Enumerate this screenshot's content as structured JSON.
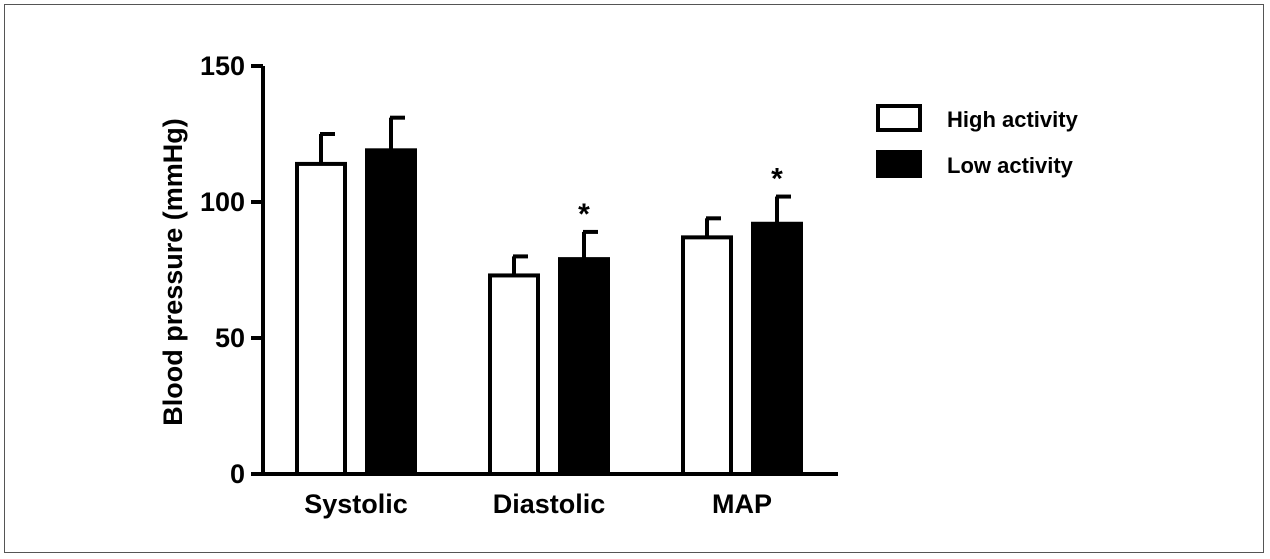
{
  "chart_data": {
    "type": "bar",
    "title": "",
    "xlabel": "",
    "ylabel": "Blood pressure (mmHg)",
    "ylim": [
      0,
      150
    ],
    "yticks": [
      0,
      50,
      100,
      150
    ],
    "categories": [
      "Systolic",
      "Diastolic",
      "MAP"
    ],
    "series": [
      {
        "name": "High activity",
        "fill": "#ffffff",
        "values": [
          114,
          73,
          87
        ],
        "errors": [
          11,
          7,
          7
        ],
        "significance": [
          "",
          "",
          ""
        ]
      },
      {
        "name": "Low activity",
        "fill": "#000000",
        "values": [
          119,
          79,
          92
        ],
        "errors": [
          12,
          10,
          10
        ],
        "significance": [
          "",
          "*",
          "*"
        ]
      }
    ],
    "grid": false,
    "legend": "right"
  }
}
